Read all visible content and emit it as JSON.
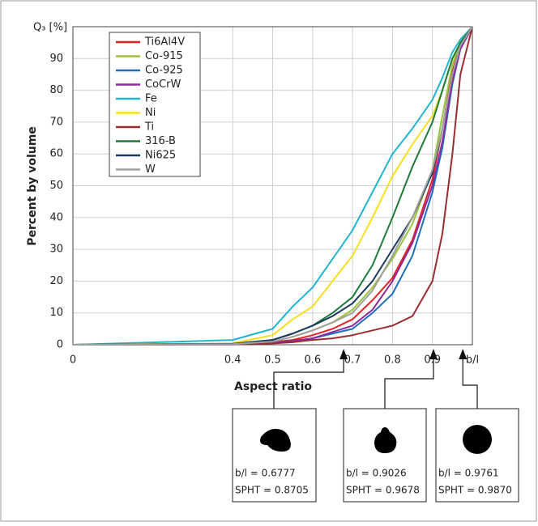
{
  "chart_data": {
    "type": "line",
    "y_axis_label": "Percent by volume",
    "y_unit_label": "Q₃ [%]",
    "x_axis_label": "Aspect ratio",
    "x": [
      0,
      0.4,
      0.5,
      0.55,
      0.6,
      0.65,
      0.7,
      0.75,
      0.8,
      0.85,
      0.9,
      0.925,
      0.95,
      0.97,
      1.0
    ],
    "series": [
      {
        "name": "Ti6Al4V",
        "color": "#e02424",
        "values": [
          0,
          0.2,
          0.8,
          1.5,
          3,
          5,
          8,
          14,
          21,
          33,
          52,
          68,
          86,
          94,
          100
        ]
      },
      {
        "name": "Co-915",
        "color": "#9ac43a",
        "values": [
          0,
          0.2,
          1,
          2.5,
          4.5,
          7,
          11,
          18,
          27,
          38,
          55,
          72,
          88,
          95,
          100
        ]
      },
      {
        "name": "Co-925",
        "color": "#1f6fc0",
        "values": [
          0,
          0.1,
          0.6,
          1.2,
          2,
          3.5,
          5,
          10,
          16,
          28,
          48,
          62,
          82,
          93,
          100
        ]
      },
      {
        "name": "CoCrW",
        "color": "#8e2a9e",
        "values": [
          0,
          0.1,
          0.6,
          1.2,
          2,
          4,
          6,
          11,
          20,
          32,
          50,
          64,
          83,
          93,
          100
        ]
      },
      {
        "name": "Fe",
        "color": "#22b5d0",
        "values": [
          0,
          1.5,
          5,
          12,
          18,
          27,
          36,
          48,
          60,
          68,
          77,
          84,
          92,
          96,
          100
        ]
      },
      {
        "name": "Ni",
        "color": "#f5e020",
        "values": [
          0,
          0.5,
          3,
          8,
          12,
          20,
          28,
          40,
          53,
          63,
          72,
          80,
          90,
          95,
          100
        ]
      },
      {
        "name": "Ti",
        "color": "#9b2d30",
        "values": [
          0,
          0.1,
          0.4,
          0.8,
          1.5,
          2,
          3,
          4.5,
          6,
          9,
          20,
          35,
          60,
          85,
          100
        ]
      },
      {
        "name": "316-B",
        "color": "#1e7a3a",
        "values": [
          0,
          0.3,
          1.5,
          3.5,
          6,
          10,
          15,
          25,
          40,
          56,
          70,
          80,
          90,
          95,
          100
        ]
      },
      {
        "name": "Ni625",
        "color": "#1a3a5c",
        "values": [
          0,
          0.3,
          1.5,
          3.5,
          6,
          9,
          13,
          20,
          30,
          40,
          54,
          68,
          85,
          94,
          100
        ]
      },
      {
        "name": "W",
        "color": "#a0a0a0",
        "values": [
          0,
          0.2,
          1,
          2.5,
          4.5,
          7,
          10,
          17,
          28,
          40,
          55,
          68,
          85,
          94,
          100
        ]
      }
    ],
    "xlim": [
      0,
      1
    ],
    "xticks": [
      0,
      0.4,
      0.5,
      0.6,
      0.7,
      0.8,
      0.9,
      {
        "value": 1,
        "label": "b/l"
      }
    ],
    "ylim": [
      0,
      100
    ],
    "yticks": [
      0,
      10,
      20,
      30,
      40,
      50,
      60,
      70,
      80,
      90
    ],
    "grid": true,
    "legend": "upper left",
    "annotations": [
      {
        "x": 0.6777,
        "label": "b/l = 0.6777",
        "spht": "SPHT = 0.8705"
      },
      {
        "x": 0.9026,
        "label": "b/l = 0.9026",
        "spht": "SPHT = 0.9678"
      },
      {
        "x": 0.9761,
        "label": "b/l = 0.9761",
        "spht": "SPHT = 0.9870"
      }
    ]
  }
}
